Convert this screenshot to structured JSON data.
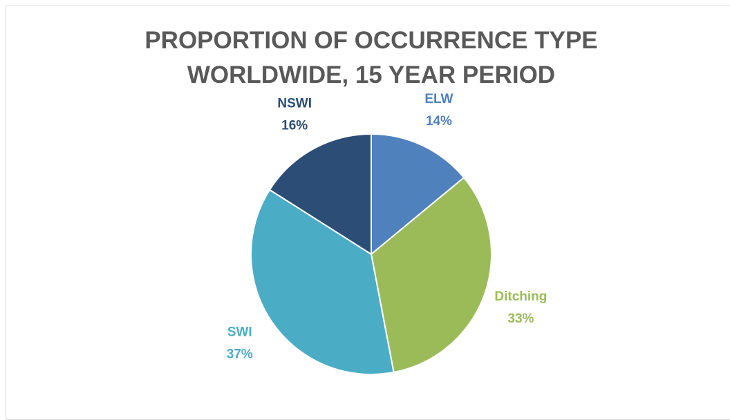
{
  "chart_data": {
    "type": "pie",
    "title": "PROPORTION OF OCCURRENCE TYPE WORLDWIDE, 15 YEAR PERIOD",
    "categories": [
      "ELW",
      "Ditching",
      "SWI",
      "NSWI"
    ],
    "values": [
      14,
      33,
      37,
      16
    ],
    "value_labels": [
      "14%",
      "33%",
      "37%",
      "16%"
    ],
    "colors": [
      "#4f81bd",
      "#9bbb59",
      "#4bacc6",
      "#2c4d75"
    ]
  }
}
